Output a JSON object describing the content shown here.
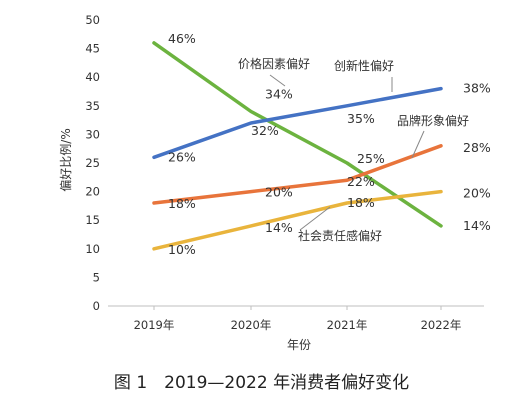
{
  "caption": "图 1　2019—2022 年消费者偏好变化",
  "chart_data": {
    "type": "line",
    "categories": [
      "2019年",
      "2020年",
      "2021年",
      "2022年"
    ],
    "xlabel": "年份",
    "ylabel": "偏好比例/%",
    "ylim": [
      0,
      50
    ],
    "yticks": [
      0,
      5,
      10,
      15,
      20,
      25,
      30,
      35,
      40,
      45,
      50
    ],
    "grid": false,
    "series": [
      {
        "name": "价格因素偏好",
        "color": "#6cb33f",
        "values": [
          46,
          34,
          25,
          14
        ],
        "value_labels": [
          "46%",
          "34%",
          "25%",
          "14%"
        ]
      },
      {
        "name": "创新性偏好",
        "color": "#4472c4",
        "values": [
          26,
          32,
          35,
          38
        ],
        "value_labels": [
          "26%",
          "32%",
          "35%",
          "38%"
        ]
      },
      {
        "name": "品牌形象偏好",
        "color": "#e8743b",
        "values": [
          18,
          20,
          22,
          28
        ],
        "value_labels": [
          "18%",
          "20%",
          "22%",
          "28%"
        ]
      },
      {
        "name": "社会责任感偏好",
        "color": "#e9b43c",
        "values": [
          10,
          14,
          18,
          20
        ],
        "value_labels": [
          "10%",
          "14%",
          "18%",
          "20%"
        ]
      }
    ]
  }
}
